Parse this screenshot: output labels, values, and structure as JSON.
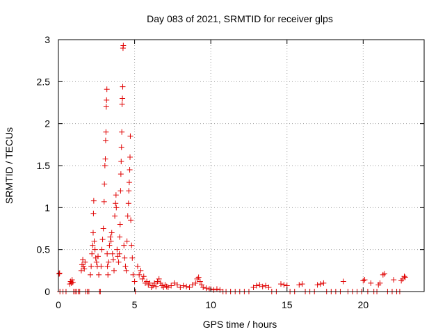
{
  "chart_data": {
    "type": "scatter",
    "title": "Day 083 of 2021, SRMTID for receiver glps",
    "xlabel": "GPS time / hours",
    "ylabel": "SRMTID / TECUs",
    "xlim": [
      0,
      24
    ],
    "ylim": [
      0,
      3
    ],
    "xticks": [
      0,
      5,
      10,
      15,
      20
    ],
    "xtick_labels": [
      "0",
      "5",
      "10",
      "15",
      "20"
    ],
    "yticks": [
      0,
      0.5,
      1,
      1.5,
      2,
      2.5,
      3
    ],
    "ytick_labels": [
      "0",
      "0.5",
      "1",
      "1.5",
      "2",
      "2.5",
      "3"
    ],
    "grid": true,
    "legend": false,
    "marker": "+",
    "series": [
      {
        "name": "SRMTID",
        "color": "#e00000",
        "points": [
          [
            0.05,
            0.21
          ],
          [
            0.08,
            0.22
          ],
          [
            0.1,
            0.0
          ],
          [
            0.3,
            0.0
          ],
          [
            0.5,
            0.0
          ],
          [
            0.75,
            0.09
          ],
          [
            0.8,
            0.12
          ],
          [
            0.85,
            0.1
          ],
          [
            0.9,
            0.14
          ],
          [
            0.95,
            0.11
          ],
          [
            1.0,
            0.0
          ],
          [
            1.1,
            0.0
          ],
          [
            1.2,
            0.0
          ],
          [
            1.3,
            0.0
          ],
          [
            1.4,
            0.0
          ],
          [
            1.5,
            0.25
          ],
          [
            1.55,
            0.32
          ],
          [
            1.6,
            0.38
          ],
          [
            1.65,
            0.3
          ],
          [
            1.7,
            0.27
          ],
          [
            1.75,
            0.35
          ],
          [
            1.8,
            0.0
          ],
          [
            1.9,
            0.0
          ],
          [
            2.0,
            0.0
          ],
          [
            2.1,
            0.2
          ],
          [
            2.15,
            0.3
          ],
          [
            2.2,
            0.45
          ],
          [
            2.25,
            0.55
          ],
          [
            2.28,
            0.7
          ],
          [
            2.3,
            0.93
          ],
          [
            2.32,
            1.08
          ],
          [
            2.35,
            0.6
          ],
          [
            2.4,
            0.5
          ],
          [
            2.45,
            0.4
          ],
          [
            2.5,
            0.35
          ],
          [
            2.55,
            0.3
          ],
          [
            2.6,
            0.42
          ],
          [
            2.65,
            0.2
          ],
          [
            2.7,
            0.0
          ],
          [
            2.75,
            0.0
          ],
          [
            2.8,
            0.3
          ],
          [
            2.85,
            0.5
          ],
          [
            2.9,
            0.62
          ],
          [
            2.95,
            0.75
          ],
          [
            3.0,
            1.07
          ],
          [
            3.02,
            1.28
          ],
          [
            3.05,
            1.5
          ],
          [
            3.08,
            1.58
          ],
          [
            3.1,
            1.8
          ],
          [
            3.12,
            1.9
          ],
          [
            3.14,
            2.2
          ],
          [
            3.16,
            2.28
          ],
          [
            3.18,
            2.41
          ],
          [
            3.2,
            0.45
          ],
          [
            3.22,
            0.3
          ],
          [
            3.25,
            0.2
          ],
          [
            3.3,
            0.35
          ],
          [
            3.35,
            0.55
          ],
          [
            3.4,
            0.65
          ],
          [
            3.45,
            0.6
          ],
          [
            3.5,
            0.7
          ],
          [
            3.55,
            0.45
          ],
          [
            3.6,
            0.38
          ],
          [
            3.65,
            0.25
          ],
          [
            3.7,
            0.9
          ],
          [
            3.75,
            1.05
          ],
          [
            3.78,
            1.15
          ],
          [
            3.8,
            1.0
          ],
          [
            3.85,
            0.5
          ],
          [
            3.9,
            0.42
          ],
          [
            3.95,
            0.35
          ],
          [
            4.0,
            0.45
          ],
          [
            4.02,
            0.65
          ],
          [
            4.05,
            0.8
          ],
          [
            4.08,
            1.2
          ],
          [
            4.1,
            1.4
          ],
          [
            4.12,
            1.55
          ],
          [
            4.14,
            1.72
          ],
          [
            4.16,
            1.9
          ],
          [
            4.18,
            2.23
          ],
          [
            4.2,
            2.3
          ],
          [
            4.22,
            2.44
          ],
          [
            4.24,
            2.9
          ],
          [
            4.26,
            2.93
          ],
          [
            4.3,
            0.55
          ],
          [
            4.35,
            0.4
          ],
          [
            4.4,
            0.3
          ],
          [
            4.45,
            0.25
          ],
          [
            4.5,
            0.6
          ],
          [
            4.55,
            0.9
          ],
          [
            4.6,
            1.05
          ],
          [
            4.62,
            1.2
          ],
          [
            4.65,
            1.3
          ],
          [
            4.68,
            1.45
          ],
          [
            4.7,
            1.6
          ],
          [
            4.72,
            1.85
          ],
          [
            4.75,
            0.85
          ],
          [
            4.8,
            0.55
          ],
          [
            4.85,
            0.4
          ],
          [
            4.9,
            0.2
          ],
          [
            5.0,
            0.12
          ],
          [
            5.05,
            0.0
          ],
          [
            5.2,
            0.3
          ],
          [
            5.3,
            0.2
          ],
          [
            5.4,
            0.25
          ],
          [
            5.5,
            0.15
          ],
          [
            5.6,
            0.18
          ],
          [
            5.7,
            0.1
          ],
          [
            5.8,
            0.12
          ],
          [
            5.9,
            0.08
          ],
          [
            6.0,
            0.1
          ],
          [
            6.1,
            0.05
          ],
          [
            6.2,
            0.07
          ],
          [
            6.3,
            0.1
          ],
          [
            6.4,
            0.06
          ],
          [
            6.5,
            0.12
          ],
          [
            6.6,
            0.15
          ],
          [
            6.7,
            0.1
          ],
          [
            6.8,
            0.07
          ],
          [
            6.9,
            0.05
          ],
          [
            7.0,
            0.08
          ],
          [
            7.1,
            0.06
          ],
          [
            7.2,
            0.05
          ],
          [
            7.4,
            0.07
          ],
          [
            7.6,
            0.1
          ],
          [
            7.8,
            0.08
          ],
          [
            8.0,
            0.05
          ],
          [
            8.2,
            0.07
          ],
          [
            8.4,
            0.06
          ],
          [
            8.6,
            0.05
          ],
          [
            8.8,
            0.08
          ],
          [
            9.0,
            0.1
          ],
          [
            9.1,
            0.15
          ],
          [
            9.2,
            0.17
          ],
          [
            9.3,
            0.12
          ],
          [
            9.4,
            0.08
          ],
          [
            9.5,
            0.05
          ],
          [
            9.7,
            0.04
          ],
          [
            9.9,
            0.03
          ],
          [
            10.0,
            0.03
          ],
          [
            10.2,
            0.02
          ],
          [
            10.4,
            0.03
          ],
          [
            10.6,
            0.02
          ],
          [
            10.8,
            0.0
          ],
          [
            11.0,
            0.0
          ],
          [
            11.3,
            0.0
          ],
          [
            11.6,
            0.0
          ],
          [
            11.9,
            0.0
          ],
          [
            12.2,
            0.0
          ],
          [
            12.5,
            0.0
          ],
          [
            12.8,
            0.05
          ],
          [
            13.0,
            0.07
          ],
          [
            13.2,
            0.08
          ],
          [
            13.4,
            0.06
          ],
          [
            13.6,
            0.07
          ],
          [
            13.8,
            0.05
          ],
          [
            14.0,
            0.0
          ],
          [
            14.3,
            0.0
          ],
          [
            14.6,
            0.09
          ],
          [
            14.8,
            0.08
          ],
          [
            15.0,
            0.07
          ],
          [
            15.2,
            0.0
          ],
          [
            15.5,
            0.0
          ],
          [
            15.8,
            0.08
          ],
          [
            16.0,
            0.09
          ],
          [
            16.2,
            0.0
          ],
          [
            16.5,
            0.0
          ],
          [
            16.8,
            0.0
          ],
          [
            17.0,
            0.08
          ],
          [
            17.2,
            0.09
          ],
          [
            17.4,
            0.1
          ],
          [
            17.6,
            0.0
          ],
          [
            17.9,
            0.0
          ],
          [
            18.2,
            0.0
          ],
          [
            18.5,
            0.0
          ],
          [
            18.7,
            0.12
          ],
          [
            19.0,
            0.0
          ],
          [
            19.3,
            0.0
          ],
          [
            19.6,
            0.0
          ],
          [
            19.9,
            0.0
          ],
          [
            20.0,
            0.13
          ],
          [
            20.1,
            0.14
          ],
          [
            20.3,
            0.0
          ],
          [
            20.5,
            0.1
          ],
          [
            20.7,
            0.0
          ],
          [
            20.9,
            0.0
          ],
          [
            21.0,
            0.08
          ],
          [
            21.1,
            0.1
          ],
          [
            21.3,
            0.2
          ],
          [
            21.4,
            0.21
          ],
          [
            21.6,
            0.0
          ],
          [
            21.9,
            0.0
          ],
          [
            22.0,
            0.14
          ],
          [
            22.2,
            0.0
          ],
          [
            22.4,
            0.0
          ],
          [
            22.5,
            0.13
          ],
          [
            22.6,
            0.15
          ],
          [
            22.7,
            0.18
          ],
          [
            22.75,
            0.17
          ]
        ]
      }
    ]
  }
}
